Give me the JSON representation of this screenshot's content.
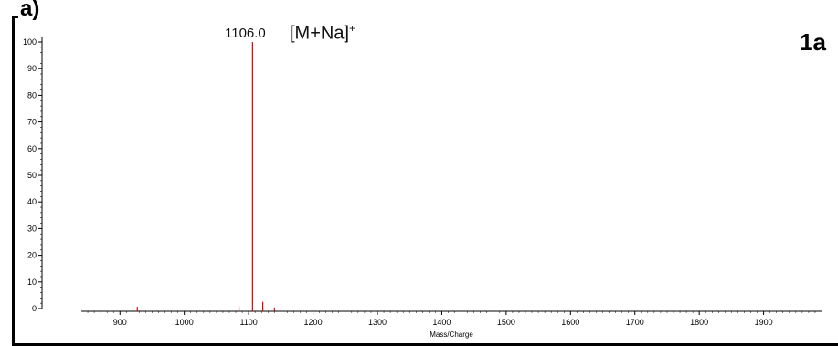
{
  "panel_label": "a)",
  "compound_label": "1a",
  "annotation": {
    "mz_label": "1106.0",
    "ion_label": "[M+Na]",
    "ion_charge": "+"
  },
  "chart_data": {
    "type": "bar",
    "xlabel": "Mass/Charge",
    "ylabel": "",
    "xlim": [
      840,
      1990
    ],
    "ylim": [
      0,
      100
    ],
    "x_ticks": [
      900,
      1000,
      1100,
      1200,
      1300,
      1400,
      1500,
      1600,
      1700,
      1800,
      1900
    ],
    "y_ticks": [
      0,
      10,
      20,
      30,
      40,
      50,
      60,
      70,
      80,
      90,
      100
    ],
    "grid": false,
    "color": "#e00000",
    "peaks": [
      {
        "x": 1106.0,
        "y": 100
      },
      {
        "x": 1122.0,
        "y": 2.5
      },
      {
        "x": 1085.0,
        "y": 0.8
      },
      {
        "x": 927.0,
        "y": 0.6
      },
      {
        "x": 1140.0,
        "y": 0.4
      }
    ]
  }
}
